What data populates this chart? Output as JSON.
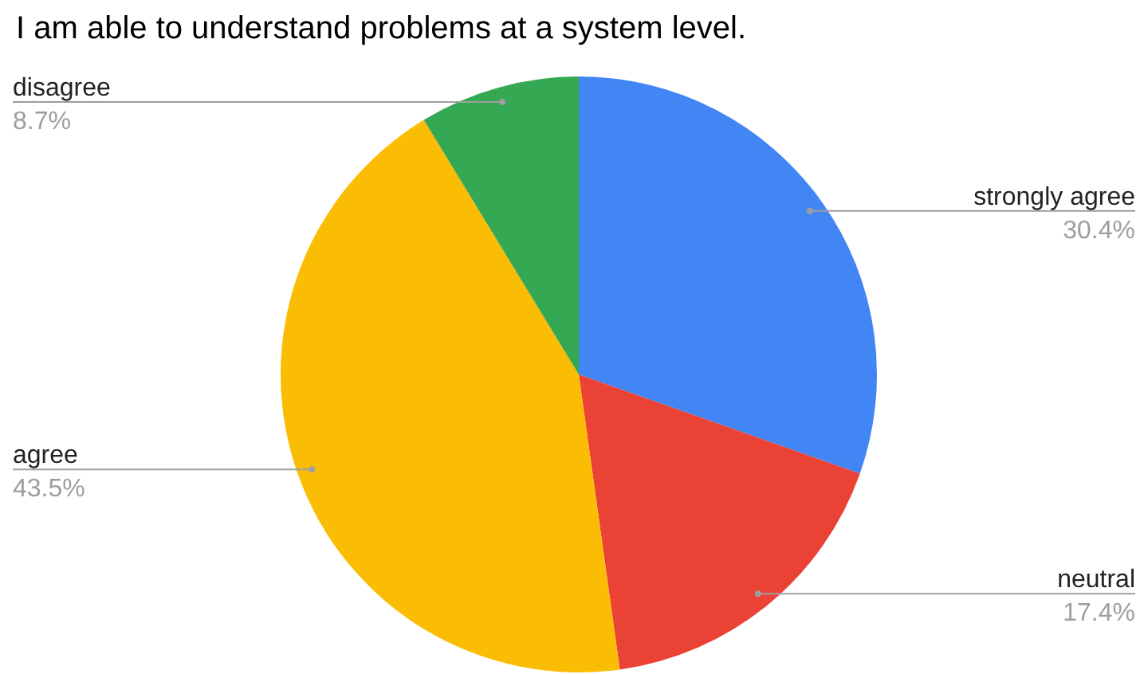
{
  "chart_data": {
    "type": "pie",
    "title": "I am able to understand problems at a system level.",
    "categories": [
      "strongly agree",
      "neutral",
      "agree",
      "disagree"
    ],
    "values": [
      30.4,
      17.4,
      43.5,
      8.7
    ],
    "colors": [
      "#4285f4",
      "#ea4335",
      "#fbbc04",
      "#34a853"
    ],
    "value_labels": [
      "30.4%",
      "17.4%",
      "43.5%",
      "8.7%"
    ],
    "legend": false
  }
}
